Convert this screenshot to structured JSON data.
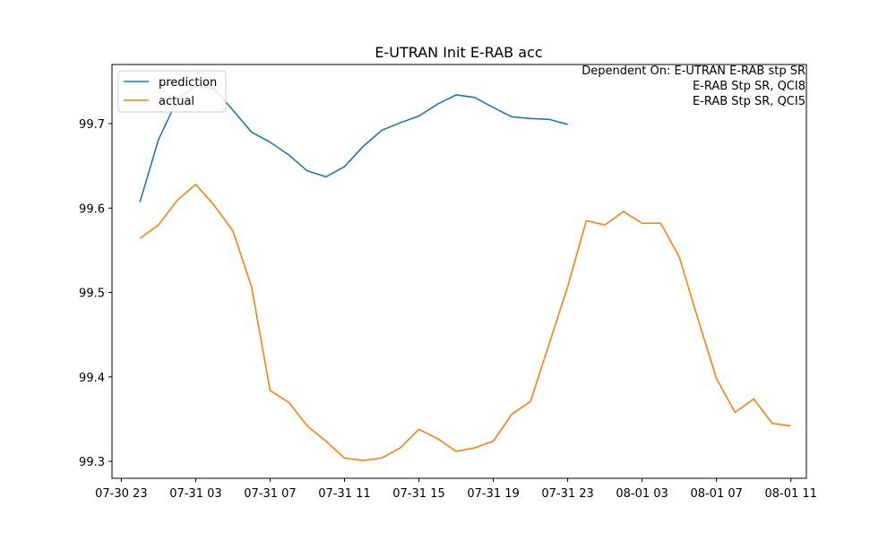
{
  "chart_data": {
    "type": "line",
    "title": "E-UTRAN Init E-RAB acc",
    "annotation": [
      "Dependent On: E-UTRAN E-RAB stp SR",
      "E-RAB Stp SR, QCI8",
      "E-RAB Stp SR, QCI5"
    ],
    "xlabel": "",
    "ylabel": "",
    "legend": {
      "placement": "top-left"
    },
    "grid": false,
    "xlim": [
      "07-30 22:30",
      "08-01 11:50"
    ],
    "ylim": [
      99.28,
      99.77
    ],
    "x_ticks": [
      "07-30 23",
      "07-31 03",
      "07-31 07",
      "07-31 11",
      "07-31 15",
      "07-31 19",
      "07-31 23",
      "08-01 03",
      "08-01 07",
      "08-01 11"
    ],
    "y_ticks": [
      99.3,
      99.4,
      99.5,
      99.6,
      99.7
    ],
    "series": [
      {
        "name": "prediction",
        "color": "#1f77b4",
        "x": [
          "07-31 00",
          "07-31 01",
          "07-31 02",
          "07-31 03",
          "07-31 04",
          "07-31 05",
          "07-31 06",
          "07-31 07",
          "07-31 08",
          "07-31 09",
          "07-31 10",
          "07-31 11",
          "07-31 12",
          "07-31 13",
          "07-31 14",
          "07-31 15",
          "07-31 16",
          "07-31 17",
          "07-31 18",
          "07-31 19",
          "07-31 20",
          "07-31 21",
          "07-31 22",
          "07-31 23"
        ],
        "values": [
          99.607,
          99.681,
          99.728,
          99.745,
          99.741,
          99.716,
          99.69,
          99.678,
          99.663,
          99.644,
          99.637,
          99.649,
          99.673,
          99.692,
          99.701,
          99.709,
          99.723,
          99.734,
          99.731,
          99.719,
          99.708,
          99.706,
          99.705,
          99.699
        ]
      },
      {
        "name": "actual",
        "color": "#ff7f0e",
        "x": [
          "07-31 00",
          "07-31 01",
          "07-31 02",
          "07-31 03",
          "07-31 04",
          "07-31 05",
          "07-31 06",
          "07-31 07",
          "07-31 08",
          "07-31 09",
          "07-31 10",
          "07-31 11",
          "07-31 12",
          "07-31 13",
          "07-31 14",
          "07-31 15",
          "07-31 16",
          "07-31 17",
          "07-31 18",
          "07-31 19",
          "07-31 20",
          "07-31 21",
          "07-31 22",
          "07-31 23",
          "08-01 00",
          "08-01 01",
          "08-01 02",
          "08-01 03",
          "08-01 04",
          "08-01 05",
          "08-01 06",
          "08-01 07",
          "08-01 08",
          "08-01 09",
          "08-01 10",
          "08-01 11"
        ],
        "values": [
          99.564,
          99.58,
          99.609,
          99.628,
          99.603,
          99.573,
          99.507,
          99.384,
          99.37,
          99.342,
          99.324,
          99.304,
          99.301,
          99.304,
          99.316,
          99.338,
          99.327,
          99.312,
          99.316,
          99.324,
          99.356,
          99.371,
          99.439,
          99.507,
          99.585,
          99.58,
          99.596,
          99.582,
          99.582,
          99.542,
          99.469,
          99.398,
          99.358,
          99.374,
          99.345,
          99.342
        ]
      }
    ]
  }
}
